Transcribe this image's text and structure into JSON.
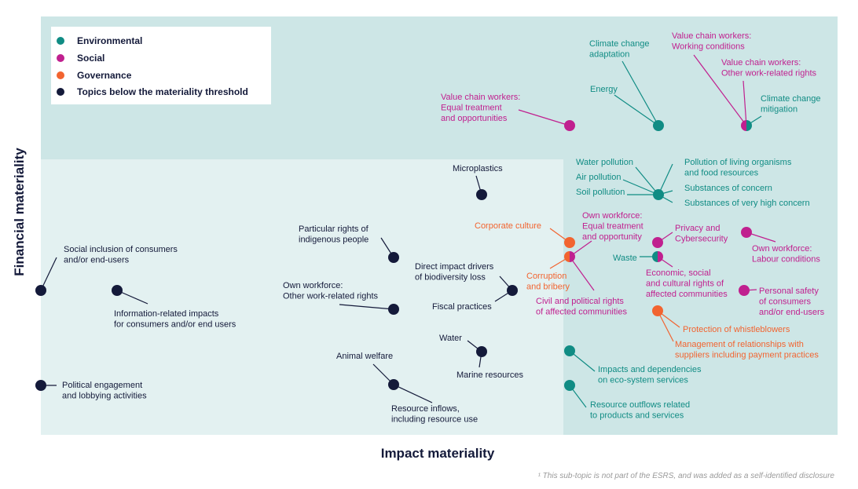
{
  "axes": {
    "x_label": "Impact materiality",
    "y_label": "Financial materiality"
  },
  "footnote": "¹ This sub-topic is not part of the ESRS, and was added as a self-identified disclosure",
  "colors": {
    "environmental": "#108c84",
    "social": "#c0208f",
    "governance": "#f26430",
    "below": "#141a3a",
    "material_zone": "#cde6e6",
    "below_zone": "#e3f1f1"
  },
  "legend": [
    {
      "label": "Environmental",
      "category": "environmental"
    },
    {
      "label": "Social",
      "category": "social"
    },
    {
      "label": "Governance",
      "category": "governance"
    },
    {
      "label": "Topics below the materiality threshold",
      "category": "below"
    }
  ],
  "topics": [
    {
      "lines": [
        "Value chain workers:",
        "Equal treatment",
        "and opportunities"
      ],
      "category": "social"
    },
    {
      "lines": [
        "Climate change",
        "adaptation"
      ],
      "category": "environmental"
    },
    {
      "lines": [
        "Energy"
      ],
      "category": "environmental"
    },
    {
      "lines": [
        "Value chain workers:",
        "Working conditions"
      ],
      "category": "social"
    },
    {
      "lines": [
        "Value chain workers:",
        "Other work-related rights"
      ],
      "category": "social"
    },
    {
      "lines": [
        "Climate change",
        "mitigation"
      ],
      "category": "environmental"
    },
    {
      "lines": [
        "Microplastics"
      ],
      "category": "below"
    },
    {
      "lines": [
        "Water pollution"
      ],
      "category": "environmental"
    },
    {
      "lines": [
        "Air pollution"
      ],
      "category": "environmental"
    },
    {
      "lines": [
        "Soil pollution"
      ],
      "category": "environmental"
    },
    {
      "lines": [
        "Pollution of living organisms",
        "and food resources"
      ],
      "category": "environmental"
    },
    {
      "lines": [
        "Substances of concern"
      ],
      "category": "environmental"
    },
    {
      "lines": [
        "Substances of very high concern"
      ],
      "category": "environmental"
    },
    {
      "lines": [
        "Corporate culture"
      ],
      "category": "governance"
    },
    {
      "lines": [
        "Corruption",
        "and bribery"
      ],
      "category": "governance"
    },
    {
      "lines": [
        "Own workforce:",
        "Equal treatment",
        "and opportunity"
      ],
      "category": "social"
    },
    {
      "lines": [
        "Civil and political rights",
        "of affected communities"
      ],
      "category": "social"
    },
    {
      "lines": [
        "Privacy and",
        "Cybersecurity"
      ],
      "category": "social"
    },
    {
      "lines": [
        "Own workforce:",
        "Labour conditions"
      ],
      "category": "social"
    },
    {
      "lines": [
        "Waste"
      ],
      "category": "environmental"
    },
    {
      "lines": [
        "Economic, social",
        "and cultural rights of",
        "affected communities"
      ],
      "category": "social"
    },
    {
      "lines": [
        "Personal safety",
        "of consumers",
        "and/or end-users"
      ],
      "category": "social"
    },
    {
      "lines": [
        "Protection of whistleblowers"
      ],
      "category": "governance"
    },
    {
      "lines": [
        "Management of relationships with",
        "suppliers including payment practices"
      ],
      "category": "governance"
    },
    {
      "lines": [
        "Impacts and dependencies",
        "on eco-system services"
      ],
      "category": "environmental"
    },
    {
      "lines": [
        "Resource outflows related",
        "to products and services"
      ],
      "category": "environmental"
    },
    {
      "lines": [
        "Particular rights of",
        "indigenous people"
      ],
      "category": "below"
    },
    {
      "lines": [
        "Social inclusion of consumers",
        "and/or end-users"
      ],
      "category": "below"
    },
    {
      "lines": [
        "Information-related impacts",
        "for consumers and/or end users"
      ],
      "category": "below"
    },
    {
      "lines": [
        "Direct impact drivers",
        "of biodiversity loss"
      ],
      "category": "below"
    },
    {
      "lines": [
        "Fiscal practices"
      ],
      "category": "below"
    },
    {
      "lines": [
        "Own workforce:",
        "Other work-related rights"
      ],
      "category": "below"
    },
    {
      "lines": [
        "Water"
      ],
      "category": "below"
    },
    {
      "lines": [
        "Marine resources"
      ],
      "category": "below"
    },
    {
      "lines": [
        "Animal welfare"
      ],
      "category": "below"
    },
    {
      "lines": [
        "Resource inflows,",
        "including resource use"
      ],
      "category": "below"
    },
    {
      "lines": [
        "Political engagement",
        "and lobbying activities"
      ],
      "category": "below"
    }
  ]
}
